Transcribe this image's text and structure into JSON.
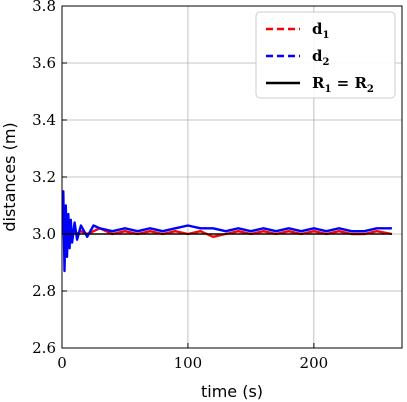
{
  "chart_data": {
    "type": "line",
    "xlabel": "time (s)",
    "ylabel": "distances (m)",
    "xlim": [
      0,
      270
    ],
    "ylim": [
      2.6,
      3.8
    ],
    "xticks": [
      "0",
      "100",
      "200"
    ],
    "yticks": [
      "2.6",
      "2.8",
      "3.0",
      "3.2",
      "3.4",
      "3.6",
      "3.8"
    ],
    "grid": true,
    "legend_position": "top-right",
    "legend": [
      {
        "base": "d",
        "sub": "1",
        "text": "",
        "color": "#ff0000",
        "style": "dashed"
      },
      {
        "base": "d",
        "sub": "2",
        "text": "",
        "color": "#0000ff",
        "style": "dashed"
      },
      {
        "base": "R",
        "sub": "1",
        "text": " = R",
        "sub2": "2",
        "color": "#000000",
        "style": "solid"
      }
    ],
    "series": [
      {
        "name": "d1",
        "color": "#ff0000",
        "x": [
          0,
          1,
          2,
          3,
          4,
          5,
          6,
          7,
          8,
          10,
          12,
          15,
          20,
          25,
          30,
          40,
          50,
          60,
          70,
          80,
          90,
          100,
          110,
          120,
          130,
          140,
          150,
          160,
          170,
          180,
          190,
          200,
          210,
          220,
          230,
          240,
          250,
          262
        ],
        "y": [
          3.0,
          3.06,
          2.97,
          3.04,
          2.98,
          3.03,
          2.99,
          3.02,
          3.0,
          3.01,
          3.0,
          3.01,
          3.0,
          3.01,
          3.02,
          3.0,
          3.01,
          3.0,
          3.01,
          3.0,
          3.01,
          3.0,
          3.01,
          2.99,
          3.0,
          3.01,
          3.0,
          3.01,
          3.0,
          3.01,
          3.0,
          3.01,
          3.0,
          3.01,
          3.0,
          3.0,
          3.01,
          3.0
        ]
      },
      {
        "name": "d2",
        "color": "#0000ff",
        "x": [
          0,
          1,
          2,
          3,
          4,
          5,
          6,
          7,
          8,
          10,
          12,
          15,
          20,
          25,
          30,
          40,
          50,
          60,
          70,
          80,
          90,
          100,
          110,
          120,
          130,
          140,
          150,
          160,
          170,
          180,
          190,
          200,
          210,
          220,
          230,
          240,
          250,
          262
        ],
        "y": [
          3.0,
          3.15,
          2.87,
          3.1,
          2.92,
          3.07,
          2.95,
          3.05,
          2.97,
          3.04,
          2.98,
          3.03,
          2.99,
          3.03,
          3.02,
          3.01,
          3.02,
          3.01,
          3.02,
          3.01,
          3.02,
          3.03,
          3.02,
          3.02,
          3.01,
          3.02,
          3.01,
          3.02,
          3.01,
          3.02,
          3.01,
          3.02,
          3.01,
          3.02,
          3.01,
          3.01,
          3.02,
          3.02
        ]
      },
      {
        "name": "R1 = R2",
        "color": "#000000",
        "x": [
          0,
          262
        ],
        "y": [
          3.0,
          3.0
        ]
      }
    ]
  }
}
